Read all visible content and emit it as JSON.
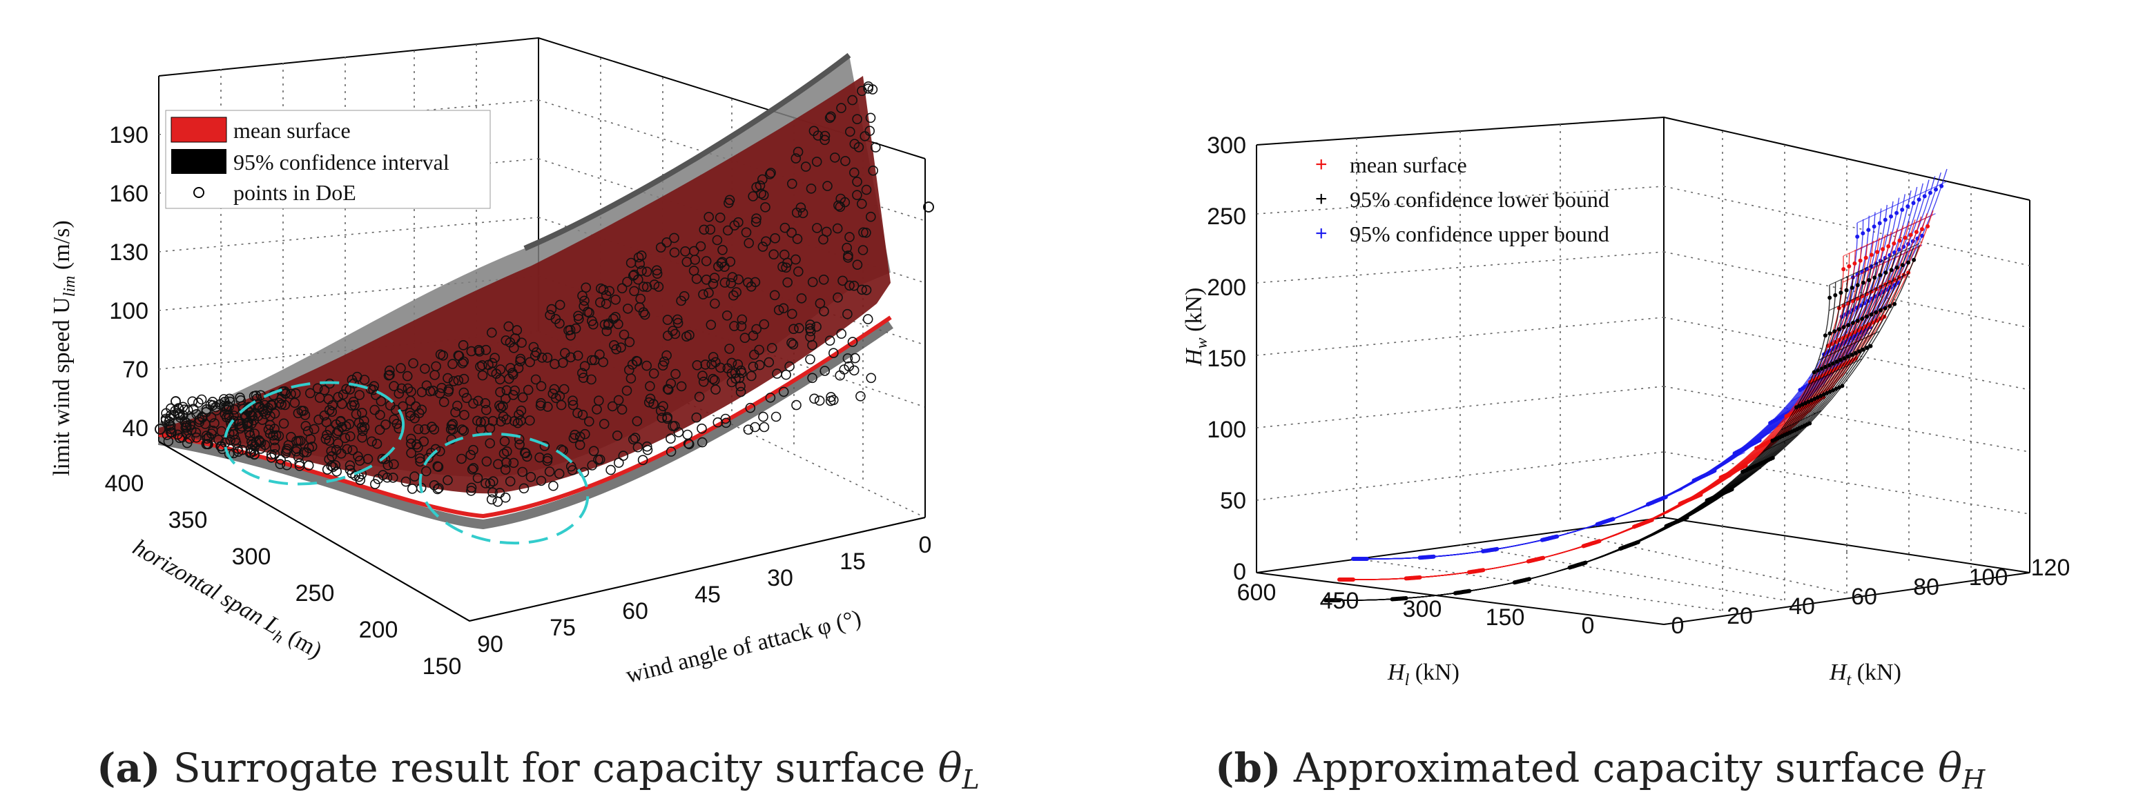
{
  "chart_data": [
    {
      "type": "surface3d",
      "panel": "a",
      "caption_letter": "(a)",
      "caption_text": " Surrogate result for capacity surface ",
      "caption_symbol": "θ",
      "caption_sub": "L",
      "zlabel": "limit wind speed U",
      "zlabel_sub": "lim",
      "zlabel_unit": " (m/s)",
      "xlabel": "wind angle of attack φ (°)",
      "ylabel": "horizontal span L",
      "ylabel_sub": "h",
      "ylabel_unit": " (m)",
      "z_ticks": [
        "190",
        "160",
        "130",
        "100",
        "70",
        "40"
      ],
      "x_ticks": [
        "90",
        "75",
        "60",
        "45",
        "30",
        "15",
        "0"
      ],
      "y_ticks": [
        "400",
        "350",
        "300",
        "250",
        "200",
        "150"
      ],
      "zlim": [
        40,
        200
      ],
      "xlim": [
        0,
        90
      ],
      "ylim": [
        150,
        400
      ],
      "legend": [
        "mean surface",
        "95% confidence interval",
        "points in DoE"
      ],
      "colors": {
        "mean": "#e02020",
        "ci": "#000000",
        "surface": "#7a1818",
        "highlight": "#33cccc"
      }
    },
    {
      "type": "scatter3d",
      "panel": "b",
      "caption_letter": "(b)",
      "caption_text": " Approximated capacity surface ",
      "caption_symbol": "θ",
      "caption_sub": "H",
      "zlabel": "H",
      "zlabel_sub": "w",
      "zlabel_unit": " (kN)",
      "xlabel": "H",
      "xlabel_sub": "t",
      "xlabel_unit": " (kN)",
      "ylabel": "H",
      "ylabel_sub": "l",
      "ylabel_unit": " (kN)",
      "z_ticks": [
        "300",
        "250",
        "200",
        "150",
        "100",
        "50",
        "0"
      ],
      "x_ticks": [
        "0",
        "20",
        "40",
        "60",
        "80",
        "100",
        "120"
      ],
      "y_ticks": [
        "600",
        "450",
        "300",
        "150",
        "0"
      ],
      "zlim": [
        0,
        300
      ],
      "xlim": [
        0,
        120
      ],
      "ylim": [
        0,
        600
      ],
      "series": [
        {
          "name": "mean surface",
          "color": "#ee1111"
        },
        {
          "name": "95% confidence lower bound",
          "color": "#000000"
        },
        {
          "name": "95% confidence upper bound",
          "color": "#1a1aee"
        }
      ]
    }
  ]
}
